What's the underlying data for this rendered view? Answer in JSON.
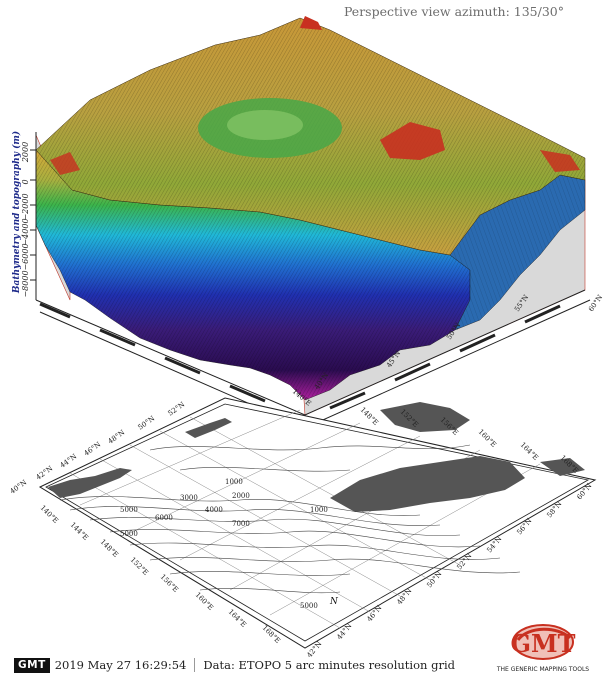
{
  "view_title": "Perspective view azimuth: 135/30°",
  "z_axis": {
    "label": "Bathymetry and topography (m)",
    "ticks": [
      "−8000",
      "−6000",
      "−4000",
      "−2000",
      "0",
      "2000"
    ]
  },
  "upper_ticks": {
    "lon": [
      "140°E"
    ],
    "lat": [
      "40°N",
      "45°N",
      "50°N",
      "55°N",
      "60°N"
    ]
  },
  "lower_map": {
    "lon_left": [
      "140°E",
      "144°E",
      "148°E",
      "152°E",
      "156°E",
      "160°E",
      "164°E",
      "168°E"
    ],
    "lat_left": [
      "40°N",
      "42°N",
      "44°N",
      "46°N",
      "48°N",
      "50°N",
      "52°N"
    ],
    "lon_right": [
      "148°E",
      "152°E",
      "156°E",
      "160°E",
      "164°E",
      "168°E"
    ],
    "lat_right": [
      "42°N",
      "44°N",
      "46°N",
      "48°N",
      "50°N",
      "52°N",
      "54°N",
      "56°N",
      "58°N",
      "60°N"
    ],
    "contours": [
      "1000",
      "3000",
      "4000",
      "5000",
      "6000",
      "7000",
      "5000",
      "2000",
      "1000",
      "5000"
    ],
    "north_label": "N"
  },
  "footer": {
    "badge": "GMT",
    "timestamp": "2019 May 27 16:29:54",
    "data_note": "Data: ETOPO 5 arc minutes resolution grid"
  },
  "logo": {
    "mark": "GMT",
    "caption": "THE GENERIC MAPPING TOOLS"
  },
  "colors": {
    "land_gray": "#555555",
    "panel_gray": "#d9d9d9",
    "frame_red": "#c0392b",
    "deep_purple": "#3a1c78",
    "mid_blue": "#2040c0",
    "cyan": "#20b8d8",
    "green": "#3cb44b",
    "yellow": "#d8c040",
    "topo_red": "#c83020"
  }
}
